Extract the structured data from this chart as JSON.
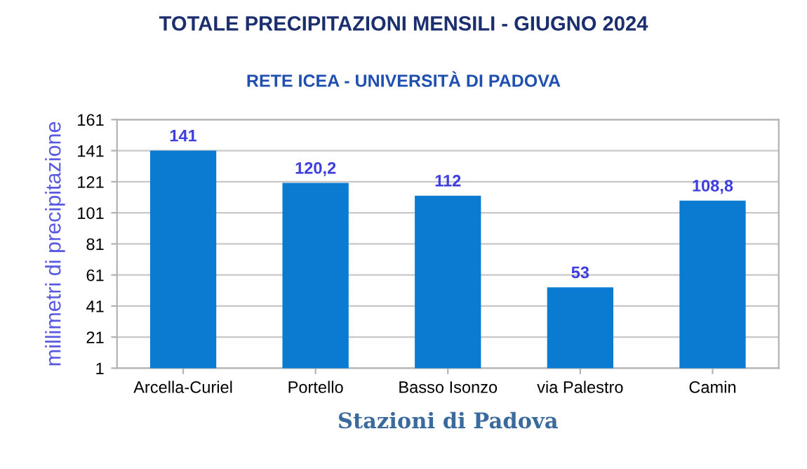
{
  "chart_data": {
    "type": "bar",
    "title": "TOTALE PRECIPITAZIONI MENSILI - GIUGNO 2024",
    "subtitle": "RETE ICEA - UNIVERSITÀ DI PADOVA",
    "xlabel": "Stazioni di Padova",
    "ylabel": "millimetri di precipitazione",
    "categories": [
      "Arcella-Curiel",
      "Portello",
      "Basso Isonzo",
      "via Palestro",
      "Camin"
    ],
    "values": [
      141,
      120.2,
      112,
      53,
      108.8
    ],
    "color": "#0a7bd0",
    "value_labels": [
      "141",
      "120,2",
      "112",
      "53",
      "108,8"
    ],
    "ylim": [
      1,
      161
    ],
    "yticks": [
      1,
      21,
      41,
      61,
      81,
      101,
      121,
      141,
      161
    ],
    "grid": "y"
  }
}
